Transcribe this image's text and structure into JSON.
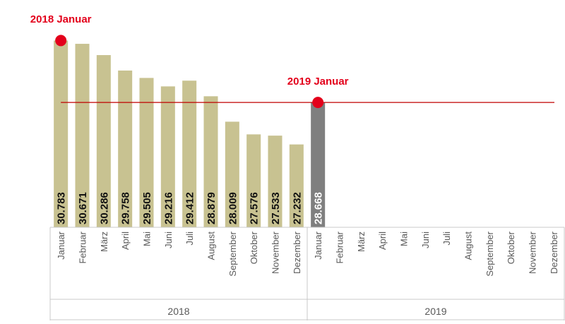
{
  "chart_data": {
    "type": "bar",
    "groups": [
      "2018",
      "2019"
    ],
    "months": [
      "Januar",
      "Februar",
      "März",
      "April",
      "Mai",
      "Juni",
      "Juli",
      "August",
      "September",
      "Oktober",
      "November",
      "Dezember"
    ],
    "series": [
      {
        "group": "2018",
        "values": [
          30783,
          30671,
          30286,
          29758,
          29505,
          29216,
          29412,
          28879,
          28009,
          27576,
          27533,
          27232
        ],
        "labels": [
          "30.783",
          "30.671",
          "30.286",
          "29.758",
          "29.505",
          "29.216",
          "29.412",
          "28.879",
          "28.009",
          "27.576",
          "27.533",
          "27.232"
        ],
        "color": "#c8c291"
      },
      {
        "group": "2019",
        "values": [
          28668,
          null,
          null,
          null,
          null,
          null,
          null,
          null,
          null,
          null,
          null,
          null
        ],
        "labels": [
          "28.668",
          "",
          "",
          "",
          "",
          "",
          "",
          "",
          "",
          "",
          "",
          ""
        ],
        "color": "#7f7f7f"
      }
    ],
    "reference_line": {
      "value": 28668,
      "color": "#c00000"
    },
    "annotations": [
      {
        "text": "2018 Januar",
        "group": "2018",
        "month": "Januar",
        "value": 30783
      },
      {
        "text": "2019 Januar",
        "group": "2019",
        "month": "Januar",
        "value": 28668
      }
    ],
    "marker_color": "#e3001b",
    "ylim": [
      24400,
      31300
    ],
    "legend": "none",
    "grid": false
  }
}
